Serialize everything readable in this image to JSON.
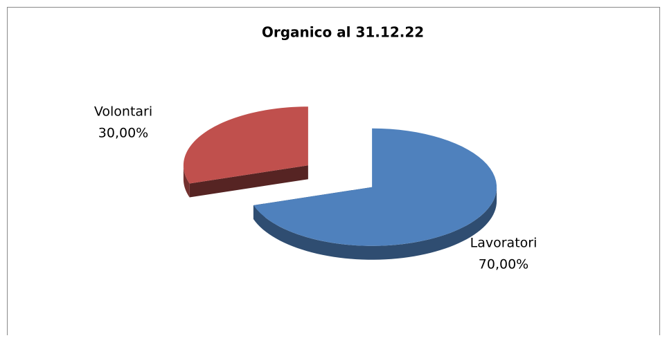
{
  "chart_data": {
    "type": "pie",
    "title": "Organico al 31.12.22",
    "categories": [
      "Lavoratori",
      "Volontari"
    ],
    "values": [
      70,
      30
    ],
    "value_labels": [
      "70,00%",
      "30,00%"
    ],
    "colors": [
      "#4f81bd",
      "#c0504d"
    ],
    "exploded": true,
    "three_d": true
  }
}
